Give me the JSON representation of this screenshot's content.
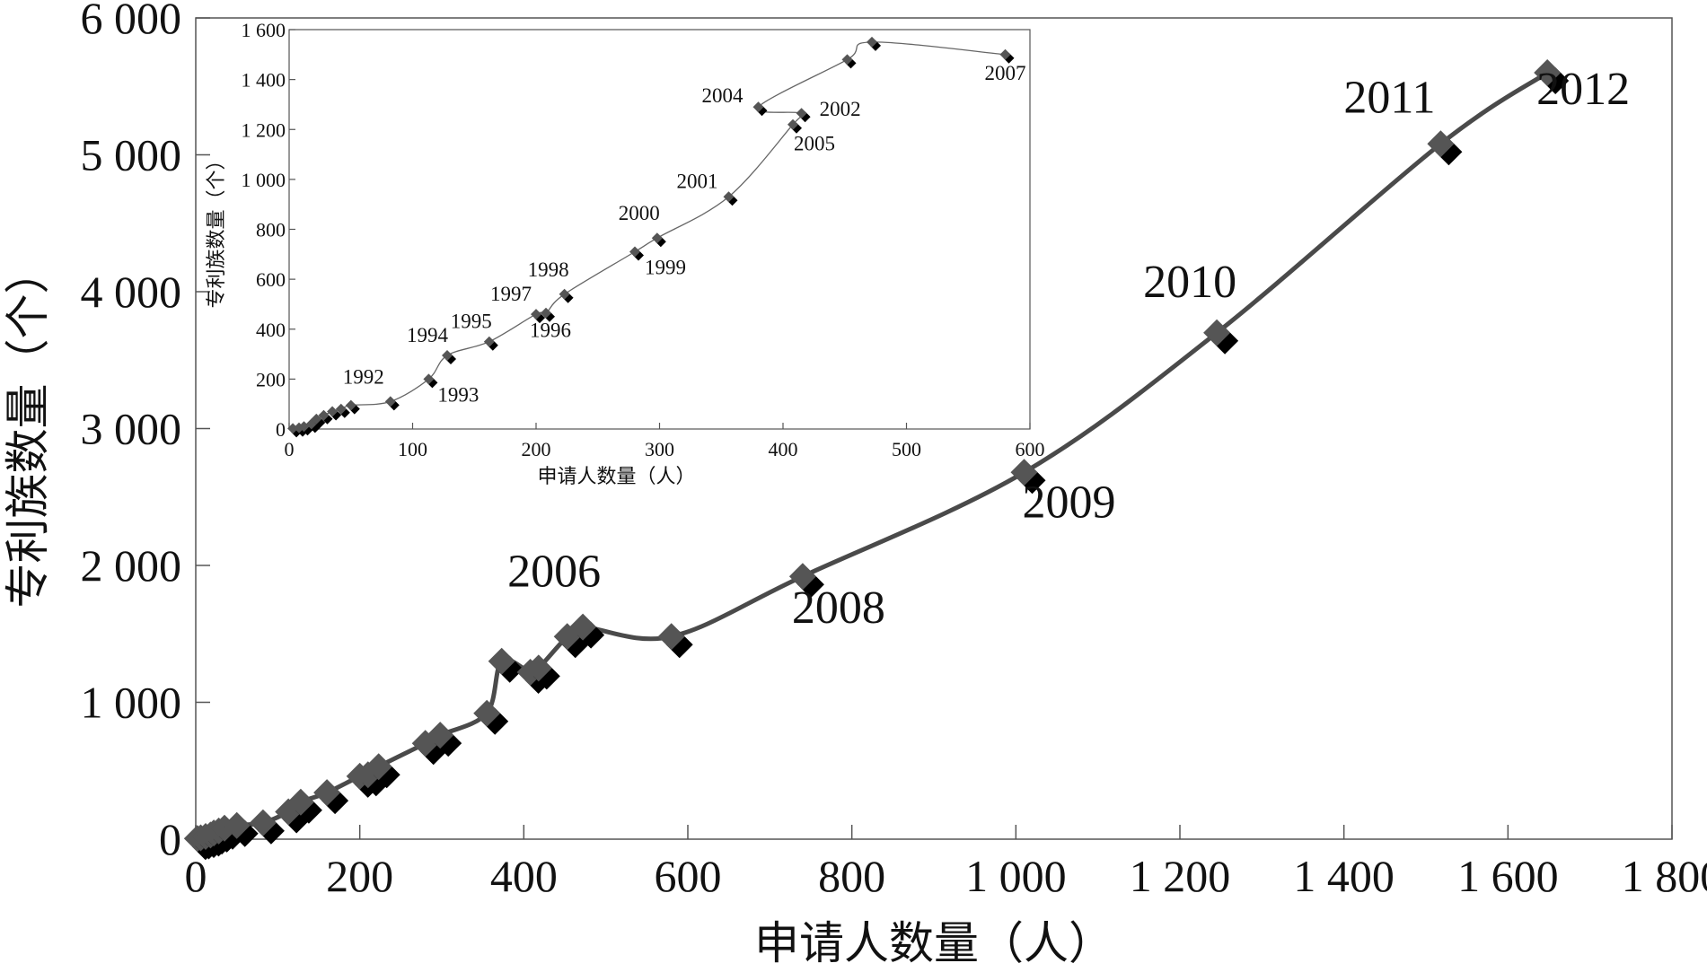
{
  "chart_data": [
    {
      "type": "line",
      "title": "",
      "xlabel": "申请人数量（人）",
      "ylabel": "专利族数量（个）",
      "xlim": [
        0,
        1800
      ],
      "ylim": [
        0,
        6000
      ],
      "x_ticks": [
        0,
        200,
        400,
        600,
        800,
        1000,
        1200,
        1400,
        1600,
        1800
      ],
      "y_ticks": [
        0,
        1000,
        2000,
        3000,
        4000,
        5000,
        6000
      ],
      "x_tick_labels": [
        "0",
        "200",
        "400",
        "600",
        "800",
        "1 000",
        "1 200",
        "1 400",
        "1 600",
        "1 800"
      ],
      "y_tick_labels": [
        "0",
        "1 000",
        "2 000",
        "3 000",
        "4 000",
        "5 000",
        "6 000"
      ],
      "grid": false,
      "series": [
        {
          "name": "",
          "x": [
            2,
            6,
            12,
            18,
            22,
            28,
            35,
            50,
            82,
            113,
            128,
            160,
            200,
            210,
            223,
            280,
            298,
            355,
            373,
            408,
            418,
            453,
            472,
            580,
            740,
            1010,
            1245,
            1518,
            1648
          ],
          "y": [
            5,
            10,
            20,
            30,
            45,
            60,
            80,
            100,
            120,
            200,
            270,
            340,
            460,
            470,
            530,
            700,
            760,
            920,
            1300,
            1220,
            1250,
            1480,
            1550,
            1480,
            1920,
            2680,
            3700,
            5080,
            5600
          ]
        }
      ],
      "annotations": [
        {
          "text": "2006",
          "x": 472,
          "y": 1550
        },
        {
          "text": "2008",
          "x": 740,
          "y": 1920
        },
        {
          "text": "2009",
          "x": 1010,
          "y": 2680
        },
        {
          "text": "2010",
          "x": 1245,
          "y": 3700
        },
        {
          "text": "2011",
          "x": 1518,
          "y": 5080
        },
        {
          "text": "2012",
          "x": 1648,
          "y": 5600
        }
      ]
    },
    {
      "type": "line",
      "title": "",
      "xlabel": "申请人数量（人）",
      "ylabel": "专利族数量（个）",
      "xlim": [
        0,
        600
      ],
      "ylim": [
        0,
        1600
      ],
      "x_ticks": [
        0,
        100,
        200,
        300,
        400,
        500,
        600
      ],
      "y_ticks": [
        0,
        200,
        400,
        600,
        800,
        1000,
        1200,
        1400,
        1600
      ],
      "x_tick_labels": [
        "0",
        "100",
        "200",
        "300",
        "400",
        "500",
        "600"
      ],
      "y_tick_labels": [
        "0",
        "200",
        "400",
        "600",
        "800",
        "1 000",
        "1 200",
        "1 400",
        "1 600"
      ],
      "grid": false,
      "series": [
        {
          "name": "",
          "x": [
            3,
            8,
            12,
            18,
            22,
            28,
            35,
            42,
            50,
            82,
            113,
            128,
            162,
            200,
            208,
            223,
            280,
            298,
            356,
            408,
            415,
            380,
            452,
            472,
            580
          ],
          "y": [
            2,
            5,
            10,
            20,
            40,
            55,
            70,
            80,
            95,
            110,
            200,
            295,
            350,
            460,
            465,
            540,
            710,
            765,
            930,
            1220,
            1265,
            1290,
            1480,
            1550,
            1500
          ]
        }
      ],
      "annotations": [
        {
          "text": "1992",
          "x": 82,
          "y": 110
        },
        {
          "text": "1993",
          "x": 113,
          "y": 200
        },
        {
          "text": "1994",
          "x": 128,
          "y": 295
        },
        {
          "text": "1995",
          "x": 162,
          "y": 350
        },
        {
          "text": "1996",
          "x": 208,
          "y": 465
        },
        {
          "text": "1997",
          "x": 200,
          "y": 460
        },
        {
          "text": "1998",
          "x": 223,
          "y": 540
        },
        {
          "text": "1999",
          "x": 280,
          "y": 710
        },
        {
          "text": "2000",
          "x": 298,
          "y": 765
        },
        {
          "text": "2001",
          "x": 356,
          "y": 930
        },
        {
          "text": "2002",
          "x": 415,
          "y": 1265
        },
        {
          "text": "2004",
          "x": 380,
          "y": 1290
        },
        {
          "text": "2005",
          "x": 408,
          "y": 1220
        },
        {
          "text": "2007",
          "x": 580,
          "y": 1500
        }
      ]
    }
  ]
}
